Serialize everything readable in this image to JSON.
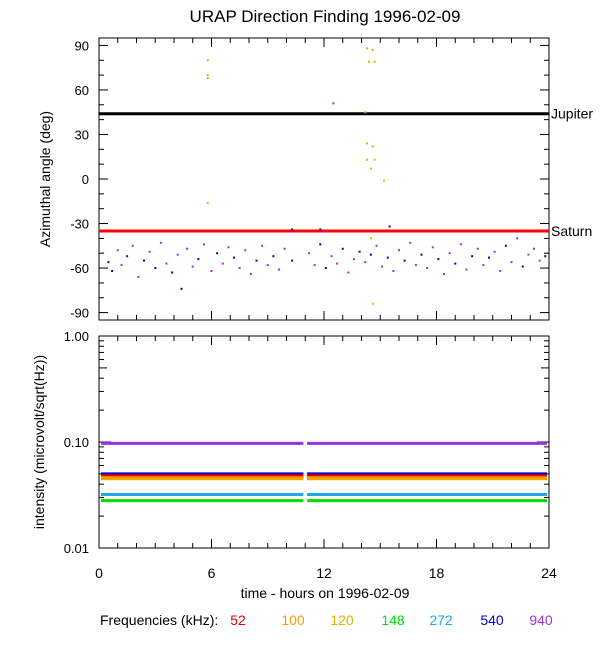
{
  "title": "URAP Direction Finding  1996-02-09",
  "xlabel": "time - hours on 1996-02-09",
  "freq_label": "Frequencies (kHz):",
  "frequencies": [
    {
      "label": "52",
      "color": "#e00000"
    },
    {
      "label": "100",
      "color": "#ff9900"
    },
    {
      "label": "120",
      "color": "#d8b400"
    },
    {
      "label": "148",
      "color": "#00e000"
    },
    {
      "label": "272",
      "color": "#22a8e8"
    },
    {
      "label": "540",
      "color": "#0000d0"
    },
    {
      "label": "940",
      "color": "#9933dd"
    }
  ],
  "chart_data": [
    {
      "type": "scatter",
      "ylabel": "Azimuthal angle (deg)",
      "xlim": [
        0,
        24
      ],
      "ylim": [
        -95,
        95
      ],
      "xticks": [
        "0",
        "6",
        "12",
        "18",
        "24"
      ],
      "yticks": [
        "90",
        "60",
        "30",
        "0",
        "-30",
        "-60",
        "-90"
      ],
      "reference_lines": [
        {
          "name": "Jupiter",
          "y": 44,
          "color": "#000000"
        },
        {
          "name": "Saturn",
          "y": -35,
          "color": "#ff0000"
        }
      ],
      "scatter_points": [
        {
          "x": 5.8,
          "y": 80,
          "freq": "120"
        },
        {
          "x": 5.8,
          "y": 70,
          "freq": "120"
        },
        {
          "x": 5.8,
          "y": 68,
          "freq": "120"
        },
        {
          "x": 5.8,
          "y": -16,
          "freq": "120"
        },
        {
          "x": 12.5,
          "y": 51,
          "freq": "940"
        },
        {
          "x": 14.3,
          "y": 88,
          "freq": "120"
        },
        {
          "x": 14.6,
          "y": 87,
          "freq": "120"
        },
        {
          "x": 14.4,
          "y": 79,
          "freq": "120"
        },
        {
          "x": 14.7,
          "y": 79,
          "freq": "120"
        },
        {
          "x": 14.2,
          "y": 45,
          "freq": "120"
        },
        {
          "x": 14.3,
          "y": 24,
          "freq": "120"
        },
        {
          "x": 14.6,
          "y": 22,
          "freq": "120"
        },
        {
          "x": 14.3,
          "y": 13,
          "freq": "120"
        },
        {
          "x": 14.7,
          "y": 13,
          "freq": "120"
        },
        {
          "x": 14.5,
          "y": 7,
          "freq": "120"
        },
        {
          "x": 15.2,
          "y": -1,
          "freq": "120"
        },
        {
          "x": 14.5,
          "y": -40,
          "freq": "120"
        },
        {
          "x": 14.6,
          "y": -84,
          "freq": "120"
        },
        {
          "x": 15.5,
          "y": -32,
          "freq": "540"
        },
        {
          "x": 10.3,
          "y": -34,
          "freq": "540"
        },
        {
          "x": 11.8,
          "y": -34,
          "freq": "540"
        },
        {
          "x": 0.2,
          "y": -50,
          "freq": "940"
        },
        {
          "x": 0.5,
          "y": -56,
          "freq": "540"
        },
        {
          "x": 0.7,
          "y": -62,
          "freq": "540"
        },
        {
          "x": 1.0,
          "y": -48,
          "freq": "940"
        },
        {
          "x": 1.2,
          "y": -58,
          "freq": "940"
        },
        {
          "x": 1.5,
          "y": -52,
          "freq": "540"
        },
        {
          "x": 1.8,
          "y": -45,
          "freq": "940"
        },
        {
          "x": 2.1,
          "y": -66,
          "freq": "940"
        },
        {
          "x": 2.4,
          "y": -55,
          "freq": "540"
        },
        {
          "x": 2.7,
          "y": -49,
          "freq": "940"
        },
        {
          "x": 3.0,
          "y": -60,
          "freq": "540"
        },
        {
          "x": 3.3,
          "y": -43,
          "freq": "940"
        },
        {
          "x": 3.6,
          "y": -57,
          "freq": "940"
        },
        {
          "x": 3.9,
          "y": -63,
          "freq": "540"
        },
        {
          "x": 4.2,
          "y": -51,
          "freq": "940"
        },
        {
          "x": 4.4,
          "y": -74,
          "freq": "540"
        },
        {
          "x": 4.7,
          "y": -47,
          "freq": "940"
        },
        {
          "x": 5.0,
          "y": -59,
          "freq": "940"
        },
        {
          "x": 5.3,
          "y": -54,
          "freq": "540"
        },
        {
          "x": 5.6,
          "y": -44,
          "freq": "940"
        },
        {
          "x": 6.0,
          "y": -62,
          "freq": "940"
        },
        {
          "x": 6.3,
          "y": -50,
          "freq": "540"
        },
        {
          "x": 6.6,
          "y": -57,
          "freq": "940"
        },
        {
          "x": 6.9,
          "y": -46,
          "freq": "940"
        },
        {
          "x": 7.2,
          "y": -53,
          "freq": "540"
        },
        {
          "x": 7.5,
          "y": -60,
          "freq": "940"
        },
        {
          "x": 7.8,
          "y": -48,
          "freq": "940"
        },
        {
          "x": 8.1,
          "y": -64,
          "freq": "940"
        },
        {
          "x": 8.4,
          "y": -55,
          "freq": "540"
        },
        {
          "x": 8.7,
          "y": -45,
          "freq": "940"
        },
        {
          "x": 9.0,
          "y": -58,
          "freq": "940"
        },
        {
          "x": 9.3,
          "y": -52,
          "freq": "540"
        },
        {
          "x": 9.6,
          "y": -61,
          "freq": "940"
        },
        {
          "x": 9.9,
          "y": -47,
          "freq": "940"
        },
        {
          "x": 10.3,
          "y": -55,
          "freq": "540"
        },
        {
          "x": 11.2,
          "y": -50,
          "freq": "940"
        },
        {
          "x": 11.5,
          "y": -58,
          "freq": "940"
        },
        {
          "x": 11.8,
          "y": -44,
          "freq": "540"
        },
        {
          "x": 12.1,
          "y": -60,
          "freq": "540"
        },
        {
          "x": 12.4,
          "y": -52,
          "freq": "940"
        },
        {
          "x": 12.7,
          "y": -57,
          "freq": "940"
        },
        {
          "x": 13.0,
          "y": -47,
          "freq": "540"
        },
        {
          "x": 13.3,
          "y": -63,
          "freq": "940"
        },
        {
          "x": 13.6,
          "y": -54,
          "freq": "940"
        },
        {
          "x": 13.9,
          "y": -49,
          "freq": "540"
        },
        {
          "x": 14.2,
          "y": -56,
          "freq": "940"
        },
        {
          "x": 14.5,
          "y": -51,
          "freq": "540"
        },
        {
          "x": 14.8,
          "y": -45,
          "freq": "940"
        },
        {
          "x": 15.1,
          "y": -59,
          "freq": "940"
        },
        {
          "x": 15.4,
          "y": -53,
          "freq": "540"
        },
        {
          "x": 15.7,
          "y": -62,
          "freq": "940"
        },
        {
          "x": 16.0,
          "y": -48,
          "freq": "940"
        },
        {
          "x": 16.3,
          "y": -55,
          "freq": "540"
        },
        {
          "x": 16.6,
          "y": -43,
          "freq": "940"
        },
        {
          "x": 16.9,
          "y": -58,
          "freq": "940"
        },
        {
          "x": 17.2,
          "y": -51,
          "freq": "540"
        },
        {
          "x": 17.5,
          "y": -60,
          "freq": "940"
        },
        {
          "x": 17.8,
          "y": -46,
          "freq": "940"
        },
        {
          "x": 18.1,
          "y": -54,
          "freq": "540"
        },
        {
          "x": 18.4,
          "y": -64,
          "freq": "940"
        },
        {
          "x": 18.7,
          "y": -50,
          "freq": "940"
        },
        {
          "x": 19.0,
          "y": -57,
          "freq": "540"
        },
        {
          "x": 19.3,
          "y": -44,
          "freq": "940"
        },
        {
          "x": 19.6,
          "y": -61,
          "freq": "940"
        },
        {
          "x": 19.9,
          "y": -52,
          "freq": "540"
        },
        {
          "x": 20.2,
          "y": -47,
          "freq": "940"
        },
        {
          "x": 20.5,
          "y": -58,
          "freq": "940"
        },
        {
          "x": 20.8,
          "y": -53,
          "freq": "540"
        },
        {
          "x": 21.1,
          "y": -49,
          "freq": "940"
        },
        {
          "x": 21.4,
          "y": -62,
          "freq": "940"
        },
        {
          "x": 21.7,
          "y": -45,
          "freq": "540"
        },
        {
          "x": 22.0,
          "y": -56,
          "freq": "940"
        },
        {
          "x": 22.3,
          "y": -40,
          "freq": "940"
        },
        {
          "x": 22.6,
          "y": -59,
          "freq": "540"
        },
        {
          "x": 22.9,
          "y": -51,
          "freq": "940"
        },
        {
          "x": 23.2,
          "y": -47,
          "freq": "940"
        },
        {
          "x": 23.5,
          "y": -55,
          "freq": "940"
        },
        {
          "x": 23.8,
          "y": -52,
          "freq": "540"
        }
      ]
    },
    {
      "type": "line",
      "ylabel": "intensity (microvolt/sqrt(Hz))",
      "xlim": [
        0,
        24
      ],
      "ylim": [
        0.01,
        1.0
      ],
      "yscale": "log",
      "xticks": [
        "0",
        "6",
        "12",
        "18",
        "24"
      ],
      "yticks": [
        "1.00",
        "0.10",
        "0.01"
      ],
      "gap": [
        10.9,
        11.1
      ],
      "series": [
        {
          "freq": "940",
          "value": 0.097
        },
        {
          "freq": "540",
          "value": 0.05
        },
        {
          "freq": "52",
          "value": 0.048
        },
        {
          "freq": "120",
          "value": 0.045
        },
        {
          "freq": "100",
          "value": 0.046
        },
        {
          "freq": "272",
          "value": 0.032
        },
        {
          "freq": "148",
          "value": 0.028
        }
      ]
    }
  ]
}
